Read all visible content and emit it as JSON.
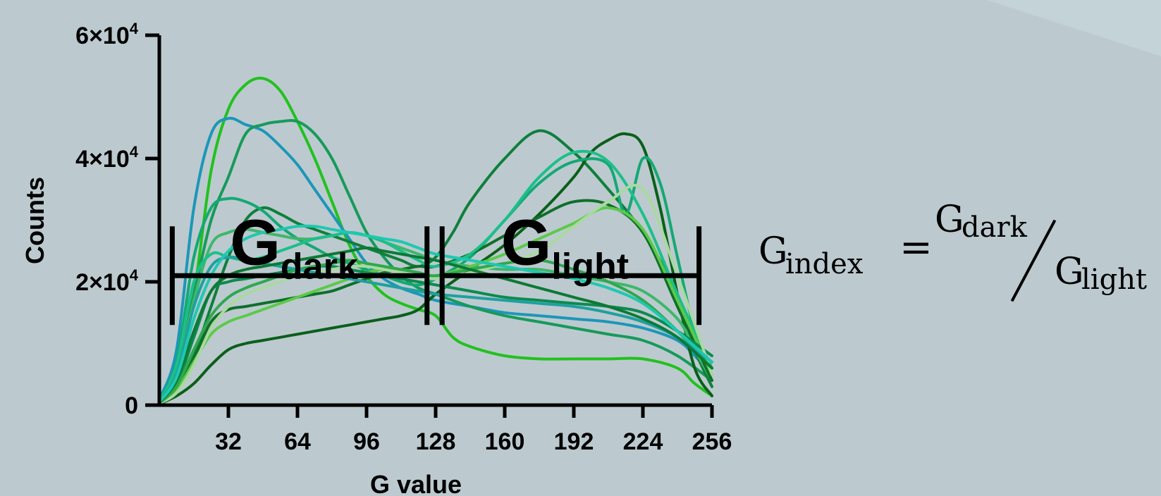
{
  "chart_data": {
    "type": "line",
    "xlabel": "G value",
    "ylabel": "Counts",
    "xlim": [
      0,
      256
    ],
    "ylim": [
      0,
      60000
    ],
    "x_ticks": [
      "32",
      "64",
      "96",
      "128",
      "160",
      "192",
      "224",
      "256"
    ],
    "x_tick_values": [
      32,
      64,
      96,
      128,
      160,
      192,
      224,
      256
    ],
    "y_ticks": [
      {
        "base": "0",
        "exp": ""
      },
      {
        "base": "2×10",
        "exp": "4"
      },
      {
        "base": "4×10",
        "exp": "4"
      },
      {
        "base": "6×10",
        "exp": "4"
      }
    ],
    "y_tick_values": [
      0,
      20000,
      40000,
      60000
    ],
    "grid": false,
    "regions": [
      {
        "main": "G",
        "sub": "dark",
        "x_start": 6,
        "x_end": 124,
        "y": 21000
      },
      {
        "main": "G",
        "sub": "light",
        "x_start": 131,
        "x_end": 250,
        "y": 21000
      }
    ],
    "series": [
      {
        "color": "#22c11e",
        "x": [
          0,
          8,
          16,
          24,
          32,
          40,
          48,
          56,
          64,
          72,
          80,
          88,
          96,
          104,
          112,
          120,
          128,
          136,
          144,
          160,
          176,
          192,
          208,
          224,
          240,
          248,
          256
        ],
        "y": [
          600,
          6000,
          18000,
          38000,
          48000,
          52000,
          53000,
          51000,
          46000,
          40000,
          33000,
          26000,
          21000,
          18000,
          16500,
          15500,
          14500,
          11000,
          9500,
          8000,
          7500,
          7500,
          7500,
          7500,
          6000,
          3500,
          1500
        ]
      },
      {
        "color": "#1d96b8",
        "x": [
          0,
          8,
          16,
          24,
          32,
          40,
          48,
          56,
          64,
          72,
          80,
          88,
          96,
          104,
          112,
          120,
          128,
          144,
          160,
          176,
          192,
          208,
          224,
          240,
          248,
          256
        ],
        "y": [
          900,
          9000,
          32000,
          44000,
          46500,
          45500,
          44500,
          42000,
          39000,
          35000,
          31000,
          27000,
          23000,
          20500,
          19000,
          18000,
          17000,
          16000,
          15000,
          14500,
          14000,
          13500,
          12500,
          10500,
          8000,
          5000
        ]
      },
      {
        "color": "#179a5a",
        "x": [
          0,
          8,
          16,
          24,
          32,
          40,
          48,
          56,
          64,
          72,
          80,
          88,
          96,
          104,
          112,
          120,
          128,
          144,
          160,
          176,
          192,
          208,
          224,
          240,
          256
        ],
        "y": [
          400,
          6000,
          18000,
          30000,
          37000,
          44000,
          45500,
          46000,
          46000,
          44000,
          40000,
          34000,
          28000,
          24000,
          21000,
          19000,
          18000,
          16000,
          14500,
          13500,
          12500,
          11500,
          10500,
          8000,
          4000
        ]
      },
      {
        "color": "#0f7f3c",
        "x": [
          0,
          8,
          16,
          24,
          32,
          40,
          48,
          56,
          64,
          72,
          80,
          88,
          96,
          104,
          112,
          120,
          128,
          136,
          144,
          160,
          176,
          192,
          208,
          224,
          240,
          248,
          256
        ],
        "y": [
          300,
          2500,
          8000,
          16000,
          24000,
          30000,
          32000,
          31000,
          29500,
          28500,
          27500,
          26500,
          25500,
          24500,
          23500,
          22500,
          24000,
          28000,
          33000,
          40000,
          44500,
          41000,
          35000,
          28000,
          18000,
          9000,
          3000
        ]
      },
      {
        "color": "#0b5f1a",
        "x": [
          0,
          8,
          16,
          24,
          32,
          40,
          48,
          56,
          64,
          72,
          80,
          88,
          96,
          104,
          112,
          120,
          128,
          144,
          160,
          176,
          192,
          200,
          208,
          216,
          224,
          232,
          240,
          248,
          256
        ],
        "y": [
          200,
          1500,
          3500,
          6500,
          9000,
          10000,
          10500,
          11000,
          11500,
          12000,
          12500,
          13000,
          13500,
          14000,
          14500,
          15500,
          18000,
          22000,
          26000,
          31000,
          37000,
          41000,
          43000,
          44000,
          42000,
          32000,
          18000,
          6000,
          1500
        ]
      },
      {
        "color": "#14a874",
        "x": [
          0,
          8,
          16,
          24,
          32,
          40,
          48,
          56,
          64,
          72,
          80,
          88,
          96,
          104,
          112,
          120,
          128,
          144,
          160,
          176,
          192,
          208,
          216,
          224,
          232,
          240,
          248,
          256
        ],
        "y": [
          700,
          7000,
          24000,
          32000,
          33500,
          33000,
          31500,
          29000,
          27000,
          25500,
          24000,
          23000,
          22000,
          21000,
          20000,
          19500,
          20500,
          24000,
          30000,
          36000,
          39500,
          39000,
          31000,
          40000,
          36000,
          24000,
          12000,
          5000
        ]
      },
      {
        "color": "#3fb76a",
        "x": [
          0,
          8,
          16,
          24,
          32,
          40,
          48,
          56,
          64,
          72,
          80,
          88,
          96,
          104,
          112,
          120,
          128,
          144,
          160,
          176,
          192,
          208,
          224,
          240,
          248,
          256
        ],
        "y": [
          500,
          5000,
          17000,
          26000,
          28000,
          28500,
          28000,
          27500,
          27000,
          27000,
          27500,
          28000,
          27500,
          26500,
          25500,
          24500,
          23500,
          22500,
          22000,
          22000,
          21000,
          20000,
          18500,
          14000,
          9000,
          4000
        ]
      },
      {
        "color": "#0f6f2a",
        "x": [
          0,
          8,
          16,
          24,
          32,
          40,
          48,
          56,
          64,
          72,
          80,
          88,
          96,
          104,
          112,
          120,
          128,
          144,
          160,
          176,
          192,
          208,
          224,
          240,
          256
        ],
        "y": [
          300,
          2500,
          7500,
          13500,
          15500,
          16000,
          16500,
          17000,
          17500,
          18000,
          18500,
          19500,
          20500,
          21500,
          22000,
          22500,
          22500,
          24500,
          27500,
          30500,
          33000,
          32500,
          28000,
          16000,
          4000
        ]
      },
      {
        "color": "#1cbf8a",
        "x": [
          0,
          8,
          16,
          24,
          32,
          40,
          48,
          56,
          64,
          72,
          80,
          88,
          96,
          104,
          112,
          120,
          128,
          144,
          160,
          176,
          192,
          208,
          224,
          240,
          256
        ],
        "y": [
          600,
          6500,
          20000,
          24500,
          24000,
          23500,
          24000,
          25000,
          26000,
          27000,
          27500,
          28000,
          27500,
          26500,
          25000,
          23500,
          22500,
          24500,
          30000,
          37000,
          41000,
          39500,
          31000,
          18000,
          6000
        ]
      },
      {
        "color": "#5cc94a",
        "x": [
          0,
          8,
          16,
          24,
          32,
          40,
          48,
          56,
          64,
          72,
          80,
          88,
          96,
          104,
          112,
          120,
          128,
          144,
          160,
          176,
          192,
          208,
          224,
          240,
          256
        ],
        "y": [
          300,
          2500,
          7000,
          11500,
          13500,
          14500,
          15500,
          16500,
          17500,
          18500,
          19500,
          20500,
          21500,
          22000,
          22000,
          21500,
          21000,
          22500,
          24500,
          27000,
          29500,
          32000,
          28500,
          17000,
          5000
        ]
      },
      {
        "color": "#0d8a50",
        "x": [
          0,
          8,
          16,
          24,
          32,
          40,
          48,
          56,
          64,
          72,
          80,
          88,
          96,
          104,
          112,
          120,
          128,
          144,
          160,
          176,
          192,
          208,
          224,
          240,
          256
        ],
        "y": [
          400,
          3500,
          11000,
          18500,
          20000,
          20500,
          21000,
          21500,
          22000,
          22500,
          22500,
          22000,
          21500,
          21000,
          20500,
          20000,
          19500,
          18500,
          17500,
          17000,
          16500,
          16000,
          15000,
          12000,
          8000
        ]
      },
      {
        "color": "#a9d9a0",
        "x": [
          0,
          8,
          16,
          24,
          32,
          40,
          48,
          56,
          64,
          72,
          80,
          88,
          96,
          104,
          112,
          120,
          128,
          144,
          160,
          176,
          192,
          208,
          224,
          240,
          256
        ],
        "y": [
          300,
          2000,
          6500,
          12500,
          16000,
          18000,
          19000,
          20000,
          21000,
          21500,
          22000,
          22500,
          22500,
          22000,
          21500,
          21000,
          20500,
          21500,
          23000,
          25000,
          29000,
          33000,
          35000,
          21000,
          5000
        ]
      },
      {
        "color": "#2fa84e",
        "x": [
          0,
          8,
          16,
          24,
          32,
          40,
          48,
          56,
          64,
          72,
          80,
          88,
          96,
          104,
          112,
          120,
          128,
          144,
          160,
          176,
          192,
          208,
          224,
          240,
          256
        ],
        "y": [
          300,
          3000,
          9000,
          14500,
          17500,
          19000,
          20000,
          21000,
          22000,
          22500,
          23000,
          23500,
          23000,
          22500,
          22000,
          21500,
          21000,
          22000,
          23000,
          23500,
          22000,
          20000,
          17000,
          12000,
          6000
        ]
      },
      {
        "color": "#1fa0a0",
        "x": [
          0,
          8,
          16,
          24,
          32,
          40,
          48,
          56,
          64,
          72,
          80,
          88,
          96,
          104,
          112,
          120,
          128,
          144,
          160,
          176,
          192,
          208,
          224,
          240,
          256
        ],
        "y": [
          500,
          5000,
          16000,
          22500,
          24000,
          23500,
          23000,
          22500,
          22000,
          21500,
          21000,
          20500,
          20000,
          19500,
          19000,
          18500,
          18000,
          17500,
          17000,
          16500,
          16000,
          15000,
          13500,
          11000,
          7000
        ]
      },
      {
        "color": "#0c7a35",
        "x": [
          0,
          8,
          16,
          24,
          32,
          40,
          48,
          56,
          64,
          72,
          80,
          88,
          96,
          104,
          112,
          120,
          128,
          144,
          160,
          176,
          192,
          208,
          224,
          240,
          256
        ],
        "y": [
          400,
          4000,
          12000,
          18500,
          21000,
          22000,
          22500,
          23000,
          23500,
          24000,
          24500,
          25000,
          25500,
          25000,
          24500,
          24000,
          23500,
          22000,
          20500,
          19000,
          17500,
          16000,
          14000,
          11000,
          6000
        ]
      },
      {
        "color": "#1ec8b0",
        "x": [
          0,
          8,
          16,
          24,
          32,
          40,
          48,
          56,
          64,
          72,
          80,
          88,
          96,
          104,
          112,
          120,
          128,
          144,
          160,
          176,
          192,
          208,
          224,
          240,
          256
        ],
        "y": [
          500,
          4500,
          14000,
          21000,
          25000,
          27000,
          28000,
          28500,
          29000,
          29000,
          28500,
          28000,
          27500,
          27000,
          26500,
          25500,
          24500,
          23500,
          22500,
          21500,
          20500,
          19000,
          16500,
          12000,
          7000
        ]
      }
    ]
  },
  "formula": {
    "lhs_main": "G",
    "lhs_sub": "index",
    "equals": "=",
    "num_main": "G",
    "num_sub": "dark",
    "den_main": "G",
    "den_sub": "light"
  }
}
